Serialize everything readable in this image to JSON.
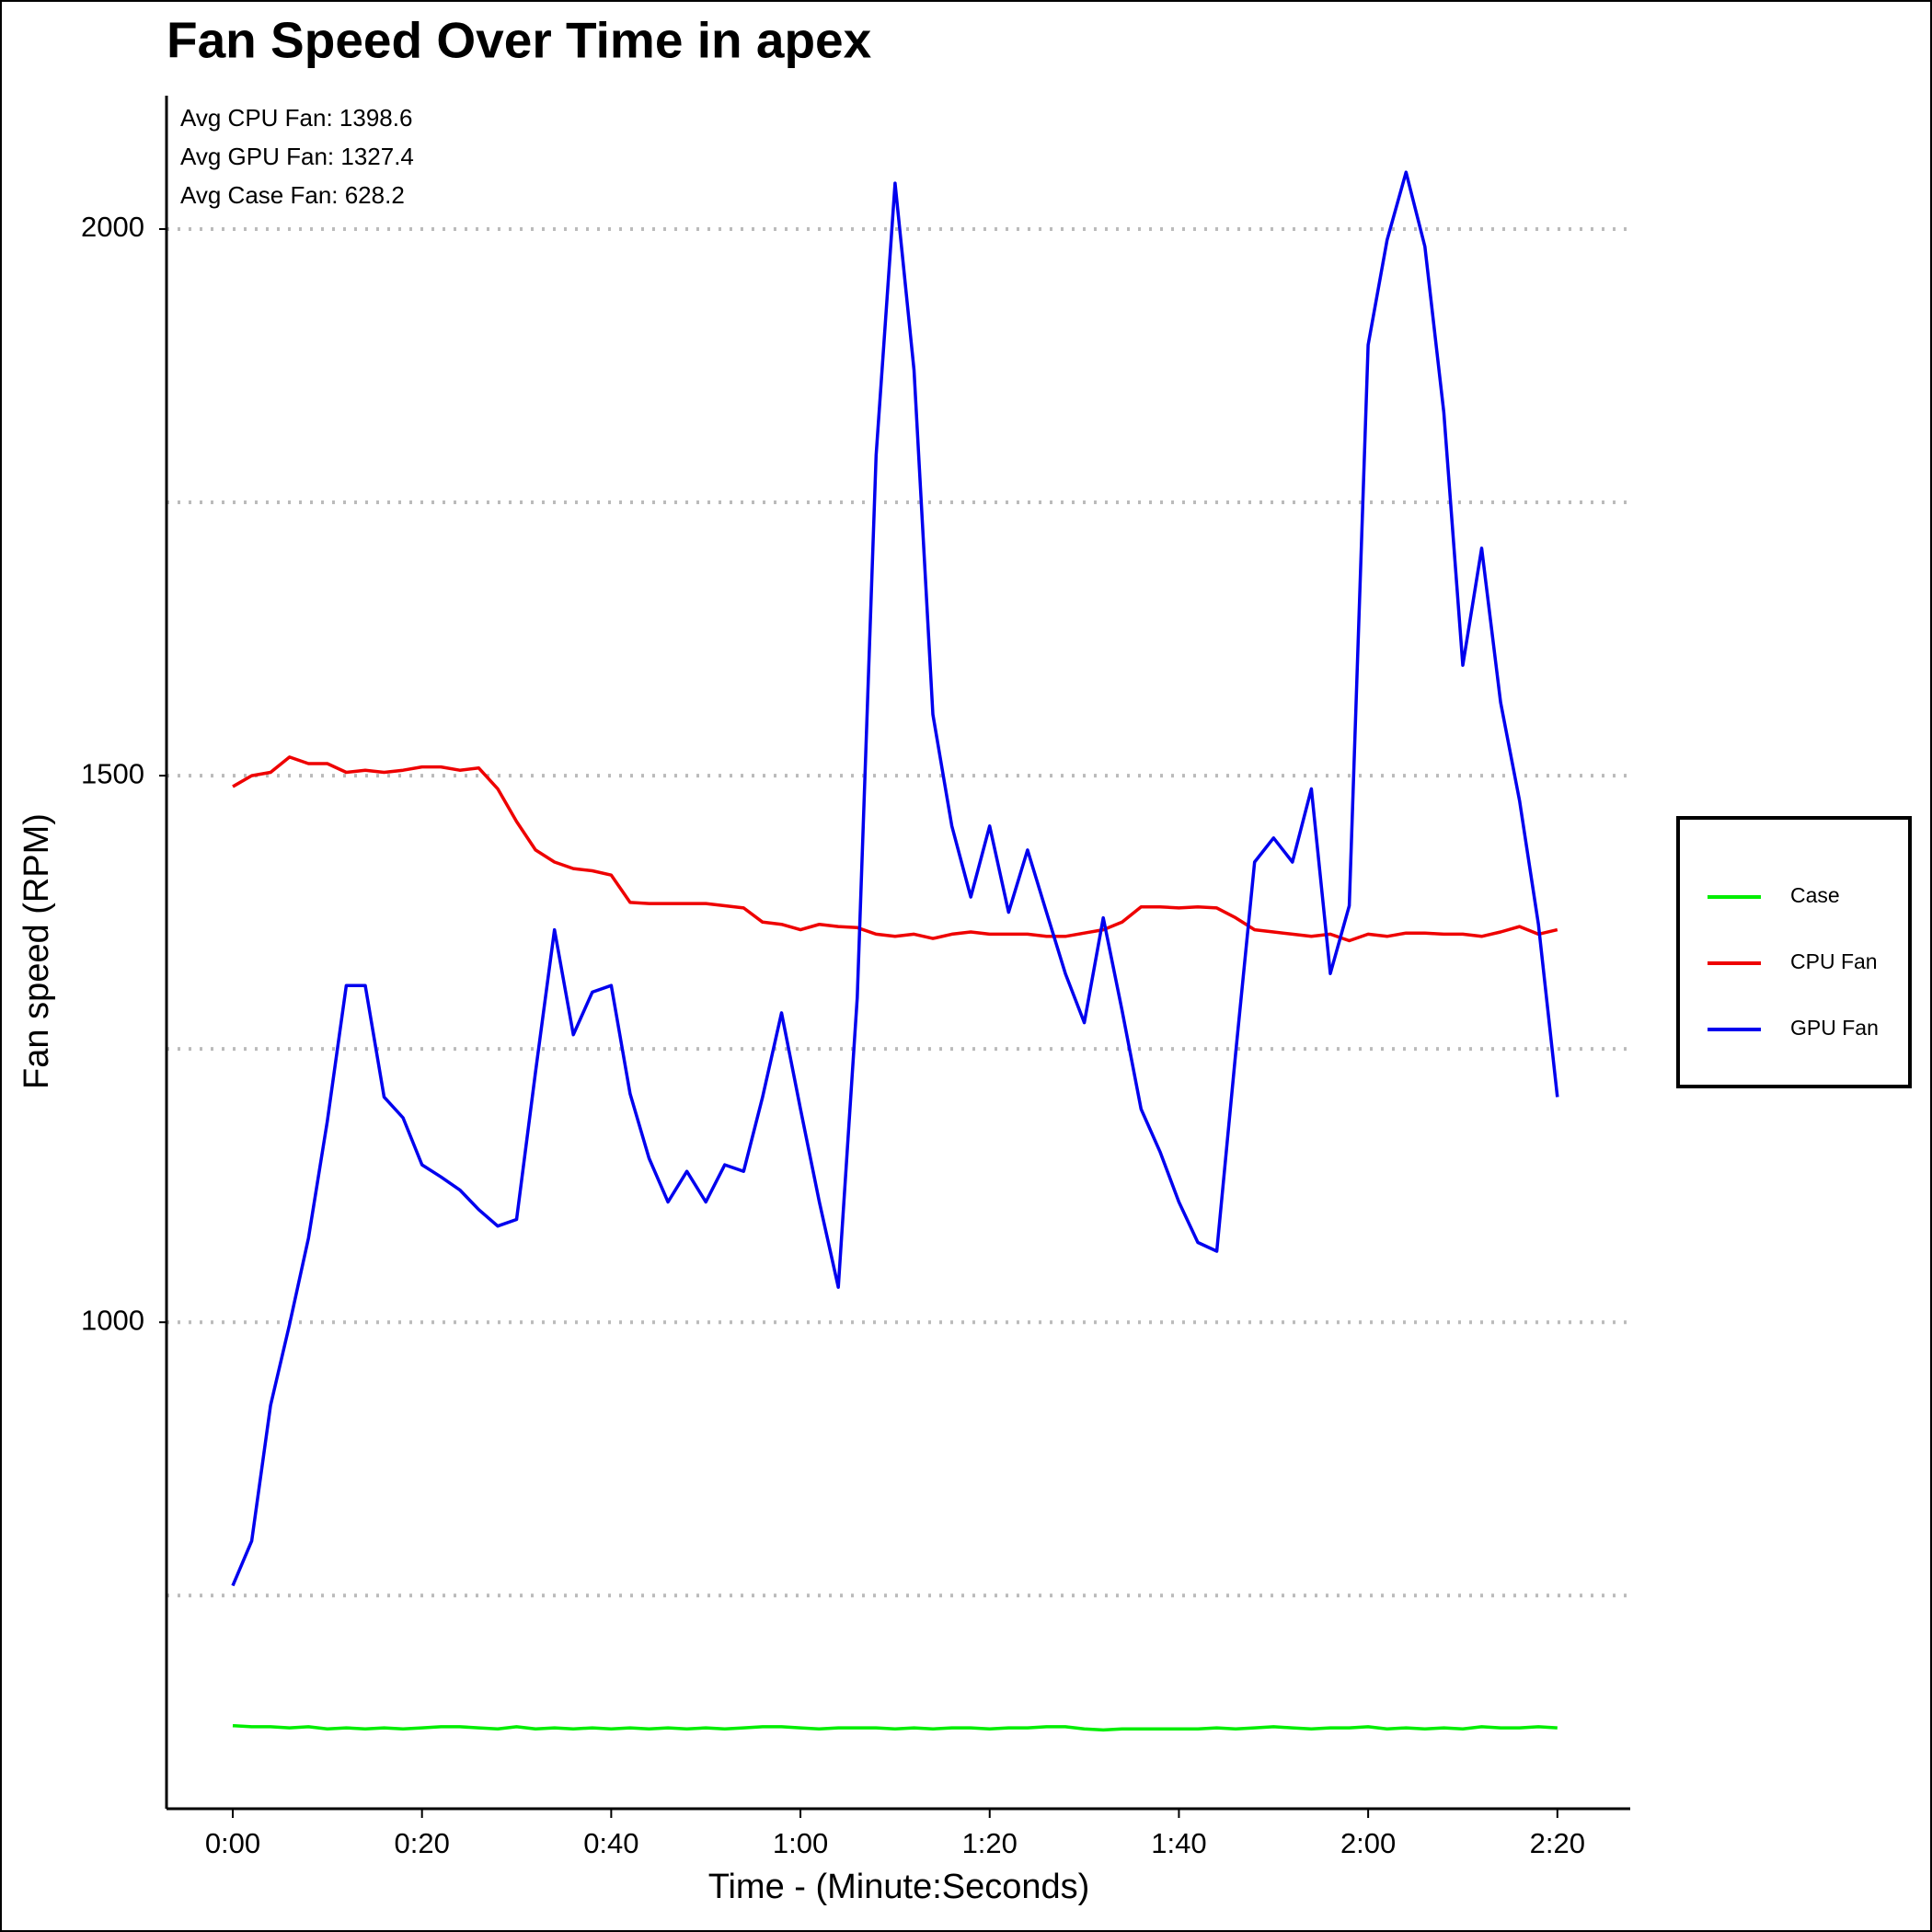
{
  "chart_data": {
    "type": "line",
    "title": "Fan Speed Over Time in apex",
    "x_label": "Time - (Minute:Seconds)",
    "y_label": "Fan speed (RPM)",
    "annotations": [
      "Avg CPU Fan: 1398.6",
      "Avg GPU Fan: 1327.4",
      "Avg Case Fan: 628.2"
    ],
    "x": [
      0,
      2,
      4,
      6,
      8,
      10,
      12,
      14,
      16,
      18,
      20,
      22,
      24,
      26,
      28,
      30,
      32,
      34,
      36,
      38,
      40,
      42,
      44,
      46,
      48,
      50,
      52,
      54,
      56,
      58,
      60,
      62,
      64,
      66,
      68,
      70,
      72,
      74,
      76,
      78,
      80,
      82,
      84,
      86,
      88,
      90,
      92,
      94,
      96,
      98,
      100,
      102,
      104,
      106,
      108,
      110,
      112,
      114,
      116,
      118,
      120,
      122,
      124,
      126,
      128,
      130,
      132,
      134,
      136,
      138,
      140
    ],
    "series": [
      {
        "name": "Case",
        "color": "#00ee00",
        "values": [
          631,
          630,
          630,
          629,
          630,
          628,
          629,
          628,
          629,
          628,
          629,
          630,
          630,
          629,
          628,
          630,
          628,
          629,
          628,
          629,
          628,
          629,
          628,
          629,
          628,
          629,
          628,
          629,
          630,
          630,
          629,
          628,
          629,
          629,
          629,
          628,
          629,
          628,
          629,
          629,
          628,
          629,
          629,
          630,
          630,
          628,
          627,
          628,
          628,
          628,
          628,
          628,
          629,
          628,
          629,
          630,
          629,
          628,
          629,
          629,
          630,
          628,
          629,
          628,
          629,
          628,
          630,
          629,
          629,
          630,
          629
        ]
      },
      {
        "name": "CPU Fan",
        "color": "#ee0000",
        "values": [
          1490,
          1500,
          1503,
          1517,
          1511,
          1511,
          1503,
          1505,
          1503,
          1505,
          1508,
          1508,
          1505,
          1507,
          1488,
          1458,
          1432,
          1421,
          1415,
          1413,
          1409,
          1384,
          1383,
          1383,
          1383,
          1383,
          1381,
          1379,
          1366,
          1364,
          1359,
          1364,
          1362,
          1361,
          1355,
          1353,
          1355,
          1351,
          1355,
          1357,
          1355,
          1355,
          1355,
          1353,
          1353,
          1356,
          1359,
          1366,
          1380,
          1380,
          1379,
          1380,
          1379,
          1370,
          1359,
          1357,
          1355,
          1353,
          1355,
          1349,
          1355,
          1353,
          1356,
          1356,
          1355,
          1355,
          1353,
          1357,
          1362,
          1355,
          1359
        ]
      },
      {
        "name": "GPU Fan",
        "color": "#0000ee",
        "values": [
          759,
          800,
          924,
          998,
          1077,
          1184,
          1308,
          1308,
          1206,
          1187,
          1144,
          1133,
          1121,
          1103,
          1088,
          1094,
          1229,
          1359,
          1263,
          1302,
          1308,
          1209,
          1150,
          1110,
          1138,
          1110,
          1144,
          1138,
          1206,
          1283,
          1195,
          1110,
          1032,
          1297,
          1793,
          2042,
          1871,
          1556,
          1454,
          1389,
          1454,
          1375,
          1432,
          1375,
          1319,
          1274,
          1370,
          1285,
          1195,
          1156,
          1110,
          1073,
          1065,
          1246,
          1421,
          1443,
          1421,
          1488,
          1319,
          1381,
          1894,
          1990,
          2052,
          1984,
          1832,
          1601,
          1708,
          1567,
          1477,
          1364,
          1206
        ]
      }
    ],
    "xlim": [
      -7,
      147.7
    ],
    "ylim": [
      555,
      2122
    ],
    "xticks": [
      {
        "value": 0,
        "label": "0:00"
      },
      {
        "value": 20,
        "label": "0:20"
      },
      {
        "value": 40,
        "label": "0:40"
      },
      {
        "value": 60,
        "label": "1:00"
      },
      {
        "value": 80,
        "label": "1:20"
      },
      {
        "value": 100,
        "label": "1:40"
      },
      {
        "value": 120,
        "label": "2:00"
      },
      {
        "value": 140,
        "label": "2:20"
      }
    ],
    "yticks": [
      1000,
      1500,
      2000
    ],
    "ygrid": [
      750,
      1000,
      1250,
      1500,
      1750,
      2000
    ],
    "legend": "right"
  }
}
